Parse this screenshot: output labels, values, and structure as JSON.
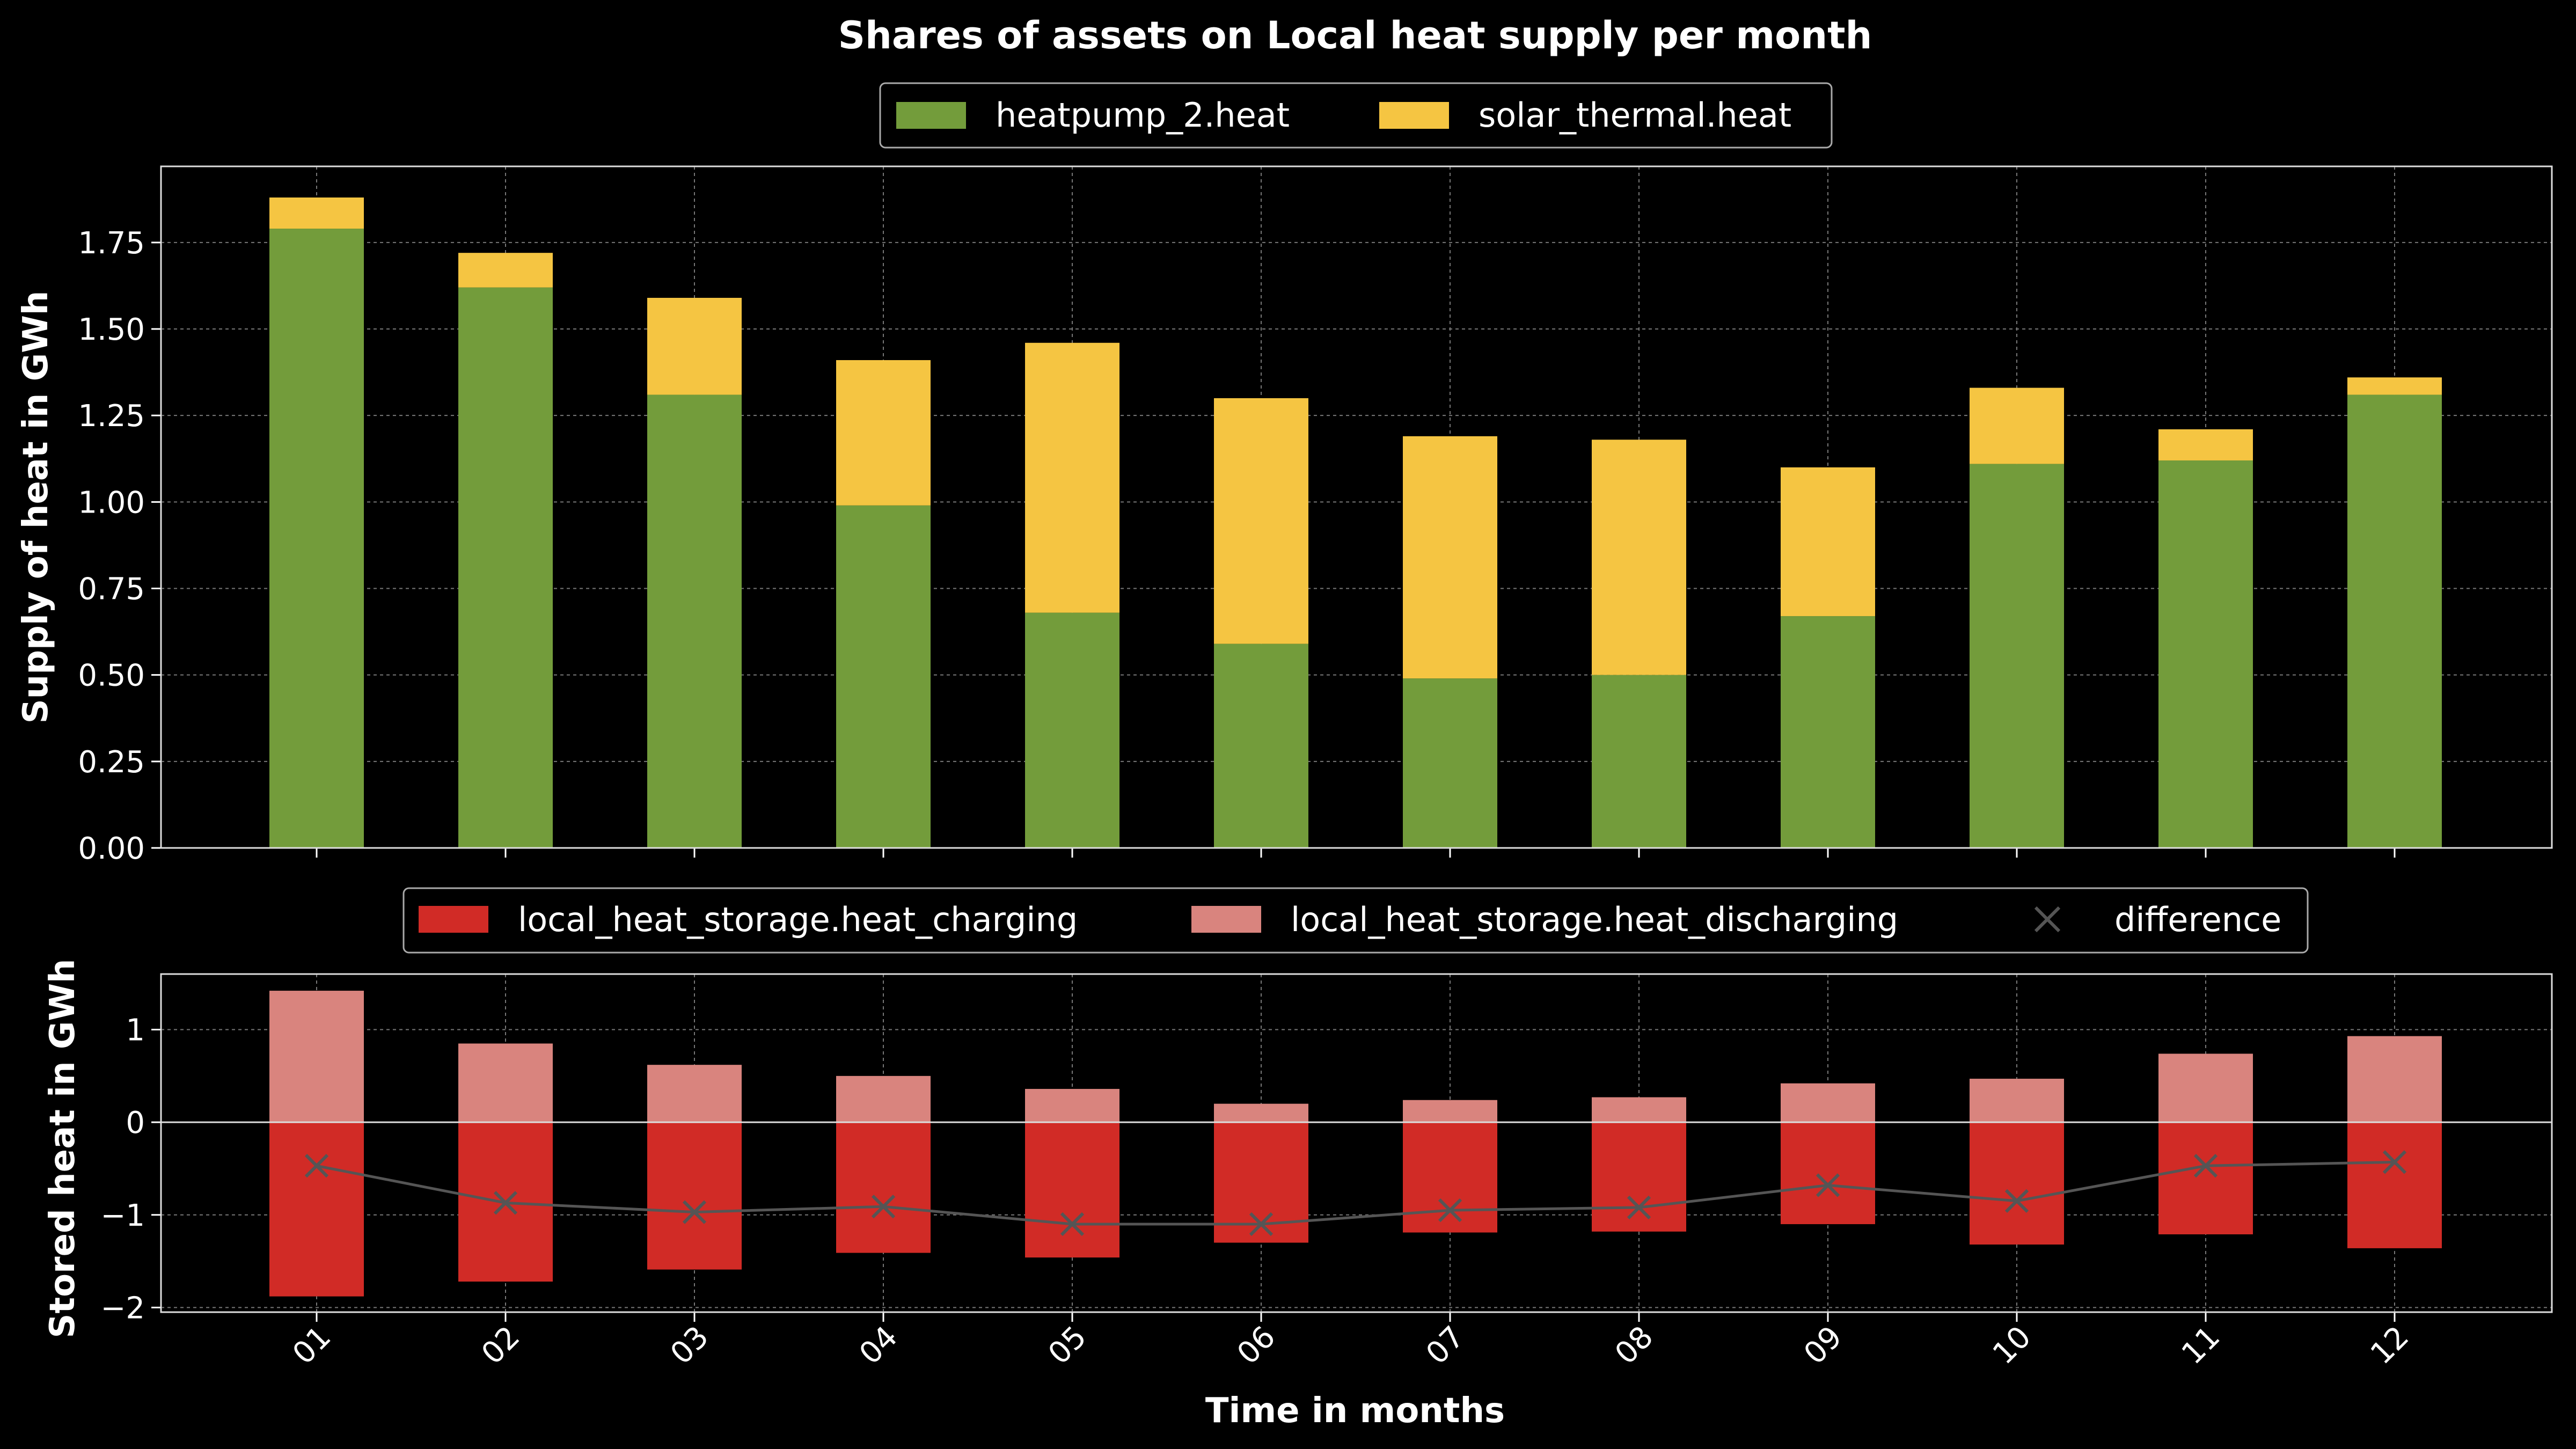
{
  "chart_data": [
    {
      "type": "bar",
      "stacked": true,
      "title": "Shares of assets on Local heat supply per month",
      "ylabel": "Supply of heat in GWh",
      "xlabel": "",
      "ylim": [
        0,
        1.97
      ],
      "yticks": [
        "0.00",
        "0.25",
        "0.50",
        "0.75",
        "1.00",
        "1.25",
        "1.50",
        "1.75"
      ],
      "grid": true,
      "legend_position": "top-center",
      "categories": [
        "01",
        "02",
        "03",
        "04",
        "05",
        "06",
        "07",
        "08",
        "09",
        "10",
        "11",
        "12"
      ],
      "series": [
        {
          "name": "heatpump_2.heat",
          "color": "#739c3b",
          "values": [
            1.79,
            1.62,
            1.31,
            0.99,
            0.68,
            0.59,
            0.49,
            0.5,
            0.67,
            1.11,
            1.12,
            1.31
          ]
        },
        {
          "name": "solar_thermal.heat",
          "color": "#f5c542",
          "values": [
            0.09,
            0.1,
            0.28,
            0.42,
            0.78,
            0.71,
            0.7,
            0.68,
            0.43,
            0.22,
            0.09,
            0.05
          ]
        }
      ]
    },
    {
      "type": "bar",
      "title": "",
      "ylabel": "Stored heat in GWh",
      "xlabel": "Time in months",
      "ylim": [
        -2.05,
        1.6
      ],
      "yticks": [
        "−2",
        "−1",
        "0",
        "1"
      ],
      "ytick_values": [
        -2,
        -1,
        0,
        1
      ],
      "grid": true,
      "legend_position": "top-center",
      "categories": [
        "01",
        "02",
        "03",
        "04",
        "05",
        "06",
        "07",
        "08",
        "09",
        "10",
        "11",
        "12"
      ],
      "series": [
        {
          "name": "local_heat_storage.heat_charging",
          "color": "#d12b26",
          "values": [
            -1.88,
            -1.72,
            -1.59,
            -1.41,
            -1.46,
            -1.3,
            -1.19,
            -1.18,
            -1.1,
            -1.32,
            -1.21,
            -1.36
          ]
        },
        {
          "name": "local_heat_storage.heat_discharging",
          "color": "#d9847e",
          "values": [
            1.42,
            0.85,
            0.62,
            0.5,
            0.36,
            0.2,
            0.24,
            0.27,
            0.42,
            0.47,
            0.74,
            0.93
          ]
        },
        {
          "name": "difference",
          "color": "#555555",
          "marker": "x",
          "values": [
            -0.47,
            -0.87,
            -0.97,
            -0.91,
            -1.1,
            -1.1,
            -0.95,
            -0.92,
            -0.68,
            -0.85,
            -0.47,
            -0.43
          ]
        }
      ]
    }
  ]
}
